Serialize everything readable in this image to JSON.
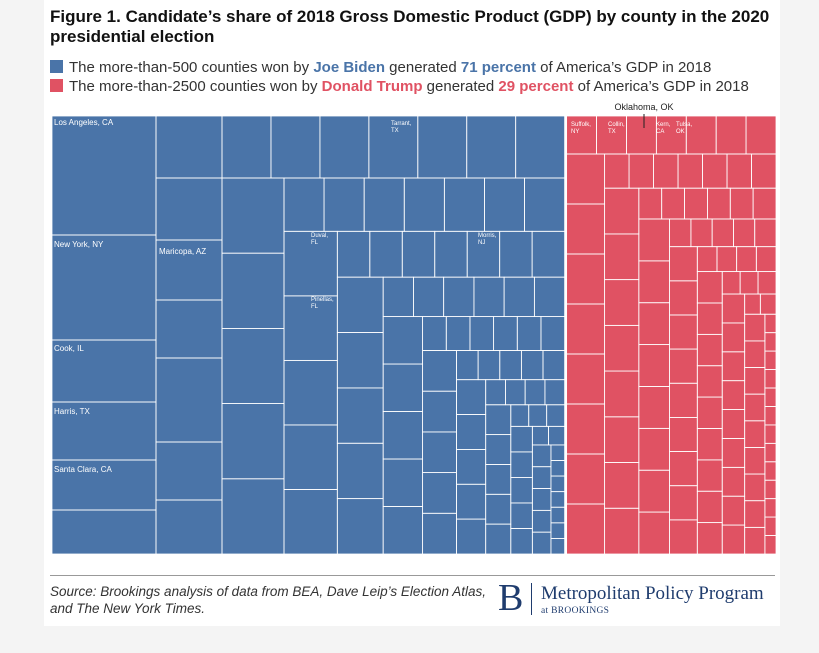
{
  "chart_data": {
    "type": "treemap",
    "title": "Figure 1. Candidate’s share of 2018 Gross Domestic Product (GDP) by county in the 2020 presidential election",
    "series": [
      {
        "name": "Joe Biden",
        "color": "#4a74a8",
        "values": [
          71
        ],
        "value_labels": [
          "71 percent"
        ],
        "legend_prefix": "The more-than-500 counties won by",
        "legend_mid": "generated",
        "legend_suffix": "of America’s GDP in 2018",
        "labels": [
          "Los Angeles, CA",
          "New York, NY",
          "Cook, IL",
          "Harris, TX",
          "Santa Clara, CA",
          "Maricopa, AZ",
          "Tarrant, TX",
          "Duval, FL",
          "Morris, NJ",
          "Pinellas, FL"
        ]
      },
      {
        "name": "Donald Trump",
        "color": "#e05263",
        "values": [
          29
        ],
        "value_labels": [
          "29 percent"
        ],
        "legend_prefix": "The more-than-2500 counties won by",
        "legend_mid": "generated",
        "legend_suffix": "of America’s GDP in 2018",
        "labels": [
          "Suffolk, NY",
          "Collin, TX",
          "Kern, CA",
          "Tulsa, OK"
        ],
        "annotation": "Oklahoma, OK"
      }
    ],
    "source": "Source: Brookings analysis of data from BEA, Dave Leip’s Election Atlas, and The New York Times.",
    "logo": {
      "letter": "B",
      "program": "Metropolitan Policy Program",
      "org": "at BROOKINGS"
    }
  }
}
